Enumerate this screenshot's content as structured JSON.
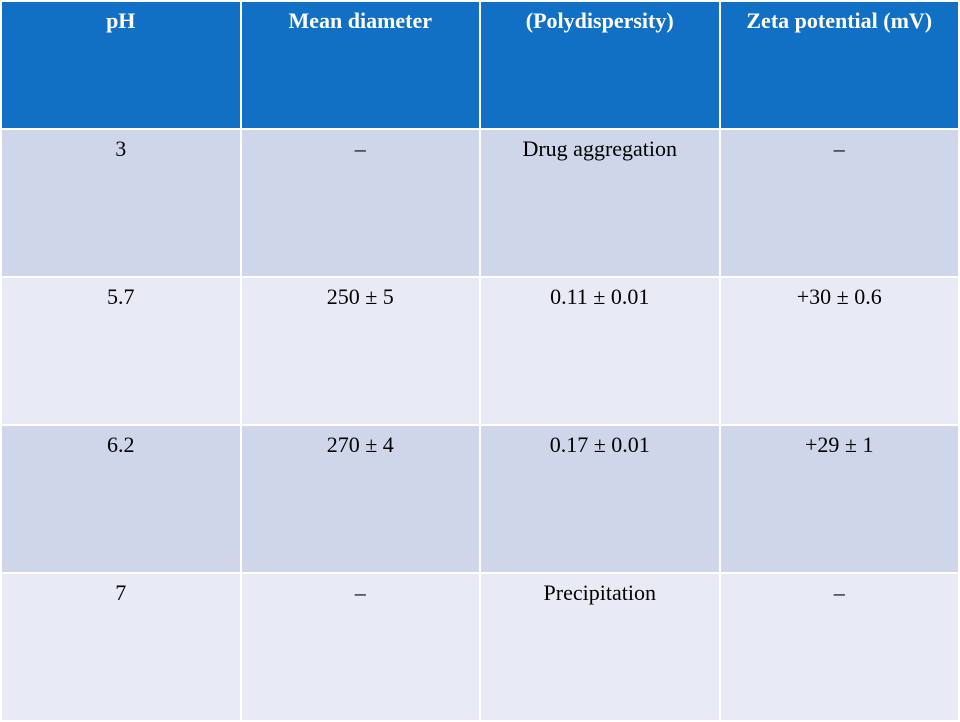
{
  "table": {
    "header": [
      "pH",
      "Mean diameter",
      "(Polydispersity)",
      "Zeta potential (mV)"
    ],
    "rows": [
      [
        "3",
        "–",
        "Drug aggregation",
        "–"
      ],
      [
        "5.7",
        "250 ± 5",
        "0.11 ± 0.01",
        "+30 ± 0.6"
      ],
      [
        "6.2",
        "270 ± 4",
        "0.17 ± 0.01",
        "+29 ± 1"
      ],
      [
        "7",
        "–",
        "Precipitation",
        "–"
      ]
    ]
  }
}
